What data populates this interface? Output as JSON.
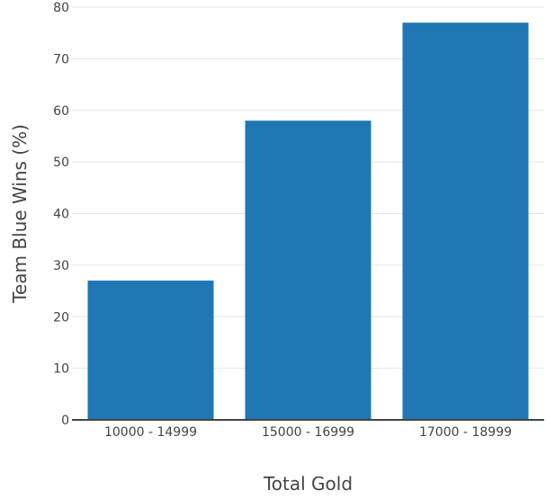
{
  "chart_data": {
    "type": "bar",
    "categories": [
      "10000 - 14999",
      "15000 - 16999",
      "17000 - 18999"
    ],
    "values": [
      27,
      58,
      77
    ],
    "xlabel": "Total Gold",
    "ylabel": "Team Blue Wins (%)",
    "ylim": [
      0,
      80
    ],
    "yticks": [
      0,
      10,
      20,
      30,
      40,
      50,
      60,
      70,
      80
    ],
    "grid": true,
    "bar_color": "#1f77b4"
  }
}
